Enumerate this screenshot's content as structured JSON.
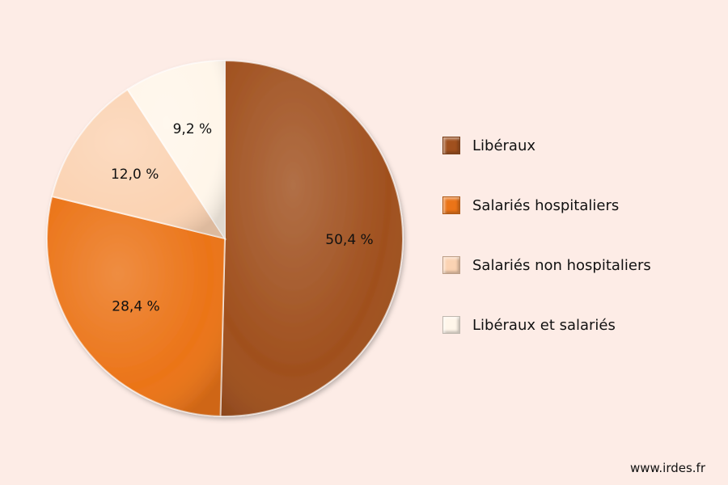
{
  "chart_data": {
    "type": "pie",
    "categories": [
      "Libéraux",
      "Salariés hospitaliers",
      "Salariés non hospitaliers",
      "Libéraux et salariés"
    ],
    "values": [
      50.4,
      28.4,
      12.0,
      9.2
    ],
    "value_labels": [
      "50,4 %",
      "28,4 %",
      "12,0 %",
      "9,2 %"
    ],
    "colors": [
      "#a0501e",
      "#eb7418",
      "#fbd3b3",
      "#fff6ea"
    ],
    "start": "top, clockwise",
    "legend_position": "right"
  },
  "legend": {
    "items": [
      {
        "label": "Libéraux",
        "color": "#a0501e"
      },
      {
        "label": "Salariés hospitaliers",
        "color": "#eb7418"
      },
      {
        "label": "Salariés non hospitaliers",
        "color": "#fbd3b3"
      },
      {
        "label": "Libéraux et salariés",
        "color": "#fff6ea"
      }
    ]
  },
  "footer": {
    "source": "www.irdes.fr"
  }
}
